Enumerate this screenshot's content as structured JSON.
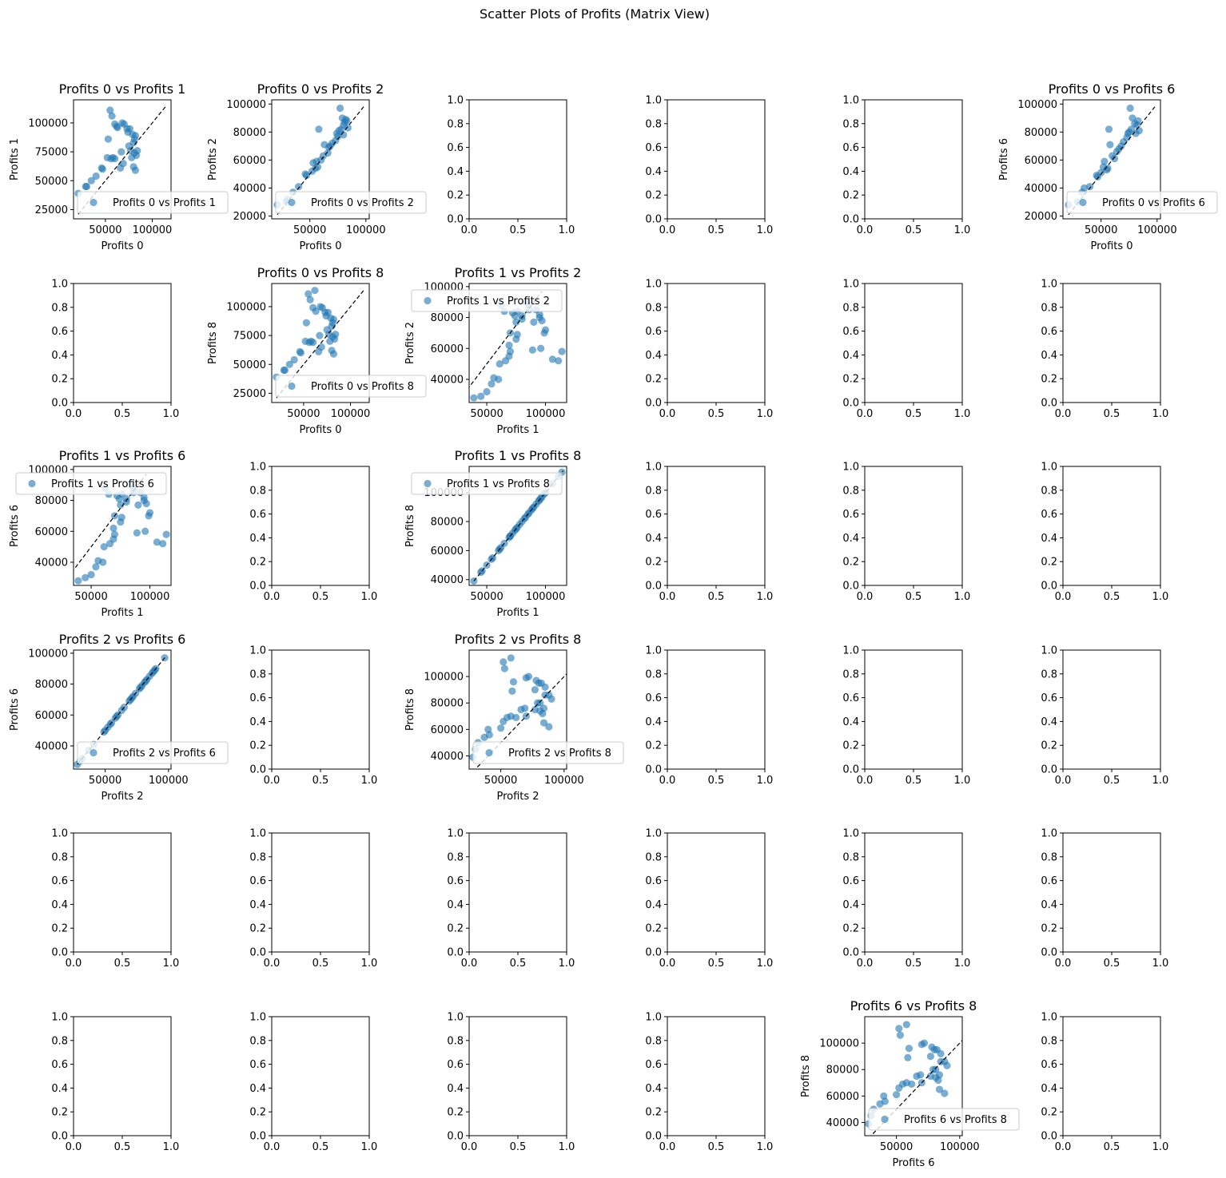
{
  "figure": {
    "title": "Scatter Plots of Profits (Matrix View)",
    "background": "#ffffff"
  },
  "style": {
    "point_color": "#1f77b4",
    "point_alpha": 0.6,
    "identity_line_color": "#000000",
    "axes_color": "#000000"
  },
  "empty_axes": {
    "xlim": [
      0,
      1
    ],
    "ylim": [
      0,
      1
    ],
    "xticks": [
      "0.0",
      "0.5",
      "1.0"
    ],
    "yticks": [
      "0.0",
      "0.2",
      "0.4",
      "0.6",
      "0.8",
      "1.0"
    ]
  },
  "grid": {
    "rows": 6,
    "cols": 6,
    "filled_cells": [
      [
        0,
        0
      ],
      [
        0,
        1
      ],
      [
        0,
        5
      ],
      [
        1,
        1
      ],
      [
        1,
        2
      ],
      [
        2,
        0
      ],
      [
        2,
        2
      ],
      [
        3,
        0
      ],
      [
        3,
        2
      ],
      [
        5,
        4
      ]
    ]
  },
  "chart_data": [
    {
      "type": "scatter",
      "title": "Profits 0 vs Profits 1",
      "xlabel": "Profits 0",
      "ylabel": "Profits 1",
      "legend": "Profits 0 vs Profits 1",
      "legend_loc": "lower-right",
      "xlim": [
        16000,
        120000
      ],
      "ylim": [
        17000,
        120000
      ],
      "xticks": [
        50000,
        100000
      ],
      "xtick_labels": [
        "50000",
        "100000"
      ],
      "yticks": [
        25000,
        50000,
        75000,
        100000
      ],
      "ytick_labels": [
        "25000",
        "50000",
        "75000",
        "100000"
      ],
      "identity": [
        21000,
        115000
      ],
      "x": [
        21000,
        29000,
        30000,
        35000,
        40000,
        46000,
        47000,
        52000,
        53000,
        55000,
        56000,
        57000,
        58000,
        60000,
        60000,
        62000,
        63000,
        66000,
        67000,
        68000,
        69000,
        70000,
        73000,
        74000,
        75000,
        76000,
        77000,
        78000,
        79000,
        80000,
        80000,
        81000,
        81000,
        82000,
        82000,
        83000,
        84000
      ],
      "y": [
        39000,
        45000,
        45000,
        50000,
        54000,
        61000,
        60000,
        70000,
        86000,
        111000,
        69000,
        106000,
        70000,
        99000,
        69000,
        97000,
        96000,
        61000,
        75000,
        100000,
        65000,
        99000,
        95000,
        92000,
        80000,
        95000,
        76000,
        70000,
        90000,
        83000,
        62000,
        86000,
        74000,
        89000,
        59000,
        72000,
        76000
      ]
    },
    {
      "type": "scatter",
      "title": "Profits 0 vs Profits 2",
      "xlabel": "Profits 0",
      "ylabel": "Profits 2",
      "legend": "Profits 0 vs Profits 2",
      "legend_loc": "lower-right",
      "xlim": [
        16000,
        103000
      ],
      "ylim": [
        18000,
        103000
      ],
      "xticks": [
        50000,
        100000
      ],
      "xtick_labels": [
        "50000",
        "100000"
      ],
      "yticks": [
        20000,
        40000,
        60000,
        80000,
        100000
      ],
      "ytick_labels": [
        "20000",
        "40000",
        "60000",
        "80000",
        "100000"
      ],
      "identity": [
        21000,
        98000
      ],
      "x": [
        21000,
        29000,
        30000,
        35000,
        40000,
        46000,
        47000,
        52000,
        53000,
        55000,
        56000,
        57000,
        58000,
        60000,
        62000,
        63000,
        66000,
        67000,
        68000,
        70000,
        73000,
        74000,
        75000,
        76000,
        77000,
        78000,
        79000,
        80000,
        80000,
        81000,
        82000,
        83000,
        84000
      ],
      "y": [
        28000,
        30000,
        32000,
        37000,
        41000,
        50000,
        49000,
        52000,
        58000,
        54000,
        59000,
        55000,
        82000,
        60000,
        63000,
        71000,
        65000,
        69000,
        70000,
        72000,
        74000,
        79000,
        77000,
        81000,
        97000,
        82000,
        90000,
        85000,
        78000,
        87000,
        89000,
        88000,
        83000
      ]
    },
    {
      "type": "scatter",
      "title": "Profits 0 vs Profits 6",
      "xlabel": "Profits 0",
      "ylabel": "Profits 6",
      "legend": "Profits 0 vs Profits 6",
      "legend_loc": "lower-right",
      "xlim": [
        16000,
        103000
      ],
      "ylim": [
        18000,
        103000
      ],
      "xticks": [
        50000,
        100000
      ],
      "xtick_labels": [
        "50000",
        "100000"
      ],
      "yticks": [
        20000,
        40000,
        60000,
        80000,
        100000
      ],
      "ytick_labels": [
        "20000",
        "40000",
        "60000",
        "80000",
        "100000"
      ],
      "identity": [
        21000,
        98000
      ],
      "x": [
        21000,
        29000,
        33000,
        35000,
        40000,
        46000,
        47000,
        50000,
        52000,
        53000,
        55000,
        56000,
        57000,
        58000,
        60000,
        62000,
        64000,
        66000,
        68000,
        70000,
        73000,
        74000,
        75000,
        76000,
        77000,
        78000,
        80000,
        81000,
        82000,
        83000,
        84000
      ],
      "y": [
        28000,
        30000,
        37000,
        40000,
        41000,
        49000,
        48000,
        51000,
        55000,
        59000,
        53000,
        54000,
        82000,
        71000,
        63000,
        61000,
        66000,
        68000,
        70000,
        73000,
        76000,
        79000,
        80000,
        97000,
        82000,
        90000,
        86000,
        79000,
        85000,
        88000,
        81000
      ]
    },
    {
      "type": "scatter",
      "title": "Profits 0 vs Profits 8",
      "xlabel": "Profits 0",
      "ylabel": "Profits 8",
      "legend": "Profits 0 vs Profits 8",
      "legend_loc": "lower-right",
      "xlim": [
        16000,
        120000
      ],
      "ylim": [
        17000,
        120000
      ],
      "xticks": [
        50000,
        100000
      ],
      "xtick_labels": [
        "50000",
        "100000"
      ],
      "yticks": [
        25000,
        50000,
        75000,
        100000
      ],
      "ytick_labels": [
        "25000",
        "50000",
        "75000",
        "100000"
      ],
      "identity": [
        21000,
        115000
      ],
      "x": [
        21000,
        29000,
        30000,
        35000,
        40000,
        46000,
        47000,
        52000,
        53000,
        55000,
        56000,
        57000,
        58000,
        60000,
        60000,
        62000,
        63000,
        66000,
        67000,
        68000,
        69000,
        70000,
        73000,
        74000,
        75000,
        76000,
        77000,
        78000,
        79000,
        80000,
        80000,
        81000,
        81000,
        82000,
        82000,
        83000,
        84000
      ],
      "y": [
        39000,
        45000,
        45000,
        50000,
        54000,
        61000,
        60000,
        70000,
        86000,
        111000,
        69000,
        106000,
        70000,
        99000,
        69000,
        114000,
        96000,
        61000,
        75000,
        100000,
        65000,
        99000,
        95000,
        92000,
        80000,
        95000,
        76000,
        70000,
        90000,
        83000,
        62000,
        86000,
        74000,
        89000,
        59000,
        72000,
        76000
      ]
    },
    {
      "type": "scatter",
      "title": "Profits 1 vs Profits 2",
      "xlabel": "Profits 1",
      "ylabel": "Profits 2",
      "legend": "Profits 1 vs Profits 2",
      "legend_loc": "upper-left",
      "xlim": [
        35000,
        118000
      ],
      "ylim": [
        25000,
        102000
      ],
      "xticks": [
        50000,
        100000
      ],
      "xtick_labels": [
        "50000",
        "100000"
      ],
      "yticks": [
        40000,
        60000,
        80000,
        100000
      ],
      "ytick_labels": [
        "40000",
        "60000",
        "80000",
        "100000"
      ],
      "identity": [
        30000,
        97000
      ],
      "x": [
        39000,
        45000,
        50000,
        54000,
        56000,
        60000,
        61000,
        62000,
        65000,
        66000,
        69000,
        69000,
        70000,
        70000,
        72000,
        74000,
        75000,
        75000,
        76000,
        76000,
        80000,
        80000,
        83000,
        86000,
        86000,
        89000,
        90000,
        92000,
        95000,
        95000,
        96000,
        97000,
        99000,
        100000,
        106000,
        111000,
        114000
      ],
      "y": [
        28000,
        29000,
        32000,
        37000,
        41000,
        40000,
        50000,
        88000,
        84000,
        52000,
        62000,
        55000,
        70000,
        58000,
        83000,
        81000,
        66000,
        77000,
        69000,
        84000,
        81000,
        79000,
        90000,
        85000,
        88000,
        59000,
        77000,
        85000,
        82000,
        80000,
        60000,
        78000,
        70000,
        72000,
        53000,
        52000,
        58000
      ]
    },
    {
      "type": "scatter",
      "title": "Profits 1 vs Profits 6",
      "xlabel": "Profits 1",
      "ylabel": "Profits 6",
      "legend": "Profits 1 vs Profits 6",
      "legend_loc": "upper-left",
      "xlim": [
        35000,
        118000
      ],
      "ylim": [
        25000,
        102000
      ],
      "xticks": [
        50000,
        100000
      ],
      "xtick_labels": [
        "50000",
        "100000"
      ],
      "yticks": [
        40000,
        60000,
        80000,
        100000
      ],
      "ytick_labels": [
        "40000",
        "60000",
        "80000",
        "100000"
      ],
      "identity": [
        30000,
        97000
      ],
      "x": [
        39000,
        45000,
        50000,
        54000,
        56000,
        60000,
        61000,
        62000,
        65000,
        66000,
        69000,
        69000,
        70000,
        70000,
        72000,
        74000,
        75000,
        75000,
        76000,
        76000,
        80000,
        80000,
        83000,
        86000,
        86000,
        89000,
        90000,
        92000,
        95000,
        95000,
        96000,
        97000,
        99000,
        100000,
        106000,
        111000,
        114000
      ],
      "y": [
        28000,
        30000,
        32000,
        37000,
        41000,
        40000,
        50000,
        88000,
        84000,
        52000,
        62000,
        55000,
        70000,
        58000,
        83000,
        81000,
        66000,
        77000,
        69000,
        84000,
        81000,
        79000,
        90000,
        85000,
        88000,
        59000,
        77000,
        85000,
        82000,
        80000,
        60000,
        78000,
        70000,
        72000,
        53000,
        52000,
        58000
      ]
    },
    {
      "type": "scatter",
      "title": "Profits 1 vs Profits 8",
      "xlabel": "Profits 1",
      "ylabel": "Profits 8",
      "legend": "Profits 1 vs Profits 8",
      "legend_loc": "upper-left",
      "xlim": [
        35000,
        118000
      ],
      "ylim": [
        36000,
        118000
      ],
      "xticks": [
        50000,
        100000
      ],
      "xtick_labels": [
        "50000",
        "100000"
      ],
      "yticks": [
        40000,
        60000,
        80000,
        100000
      ],
      "ytick_labels": [
        "40000",
        "60000",
        "80000",
        "100000"
      ],
      "identity": [
        39000,
        115000
      ],
      "x": [
        39000,
        45000,
        46000,
        50000,
        54000,
        55000,
        60000,
        61000,
        62000,
        65000,
        69000,
        70000,
        70000,
        72000,
        74000,
        75000,
        76000,
        78000,
        80000,
        82000,
        83000,
        85000,
        86000,
        88000,
        89000,
        90000,
        92000,
        94000,
        95000,
        96000,
        97000,
        99000,
        100000,
        106000,
        111000,
        114000
      ],
      "y": [
        39000,
        45000,
        46000,
        50000,
        54000,
        55000,
        60000,
        61000,
        62000,
        65000,
        69000,
        70000,
        70000,
        72000,
        74000,
        75000,
        76000,
        78000,
        80000,
        82000,
        83000,
        85000,
        86000,
        88000,
        89000,
        90000,
        92000,
        94000,
        95000,
        96000,
        97000,
        99000,
        100000,
        106000,
        111000,
        114000
      ]
    },
    {
      "type": "scatter",
      "title": "Profits 2 vs Profits 6",
      "xlabel": "Profits 2",
      "ylabel": "Profits 6",
      "legend": "Profits 2 vs Profits 6",
      "legend_loc": "lower-right",
      "xlim": [
        25000,
        102000
      ],
      "ylim": [
        25000,
        102000
      ],
      "xticks": [
        50000,
        100000
      ],
      "xtick_labels": [
        "50000",
        "100000"
      ],
      "yticks": [
        40000,
        60000,
        80000,
        100000
      ],
      "ytick_labels": [
        "40000",
        "60000",
        "80000",
        "100000"
      ],
      "identity": [
        28000,
        98000
      ],
      "x": [
        28000,
        30000,
        32000,
        37000,
        41000,
        49000,
        50000,
        52000,
        54000,
        55000,
        58000,
        59000,
        60000,
        63000,
        65000,
        69000,
        70000,
        71000,
        72000,
        74000,
        77000,
        78000,
        79000,
        81000,
        82000,
        83000,
        85000,
        87000,
        88000,
        89000,
        90000,
        97000
      ],
      "y": [
        28000,
        30000,
        32000,
        37000,
        41000,
        49000,
        50000,
        52000,
        54000,
        55000,
        58000,
        59000,
        60000,
        63000,
        65000,
        69000,
        70000,
        71000,
        72000,
        74000,
        77000,
        78000,
        79000,
        81000,
        82000,
        83000,
        85000,
        87000,
        88000,
        89000,
        90000,
        97000
      ]
    },
    {
      "type": "scatter",
      "title": "Profits 2 vs Profits 8",
      "xlabel": "Profits 2",
      "ylabel": "Profits 8",
      "legend": "Profits 2 vs Profits 8",
      "legend_loc": "lower-right",
      "xlim": [
        25000,
        102000
      ],
      "ylim": [
        30000,
        120000
      ],
      "xticks": [
        50000,
        100000
      ],
      "xtick_labels": [
        "50000",
        "100000"
      ],
      "yticks": [
        40000,
        60000,
        80000,
        100000
      ],
      "ytick_labels": [
        "40000",
        "60000",
        "80000",
        "100000"
      ],
      "identity": [
        28000,
        115000
      ],
      "x": [
        28000,
        30000,
        32000,
        37000,
        41000,
        40000,
        50000,
        88000,
        84000,
        52000,
        62000,
        55000,
        70000,
        58000,
        83000,
        81000,
        66000,
        77000,
        69000,
        84000,
        81000,
        79000,
        90000,
        85000,
        88000,
        59000,
        77000,
        85000,
        82000,
        80000,
        60000,
        78000,
        70000,
        72000,
        53000,
        52000,
        58000
      ],
      "y": [
        39000,
        45000,
        50000,
        54000,
        56000,
        60000,
        61000,
        62000,
        65000,
        66000,
        69000,
        69000,
        70000,
        70000,
        72000,
        74000,
        75000,
        75000,
        76000,
        76000,
        80000,
        80000,
        83000,
        86000,
        86000,
        89000,
        90000,
        92000,
        95000,
        95000,
        96000,
        97000,
        99000,
        100000,
        106000,
        111000,
        114000
      ]
    },
    {
      "type": "scatter",
      "title": "Profits 6 vs Profits 8",
      "xlabel": "Profits 6",
      "ylabel": "Profits 8",
      "legend": "Profits 6 vs Profits 8",
      "legend_loc": "lower-right",
      "xlim": [
        25000,
        102000
      ],
      "ylim": [
        30000,
        120000
      ],
      "xticks": [
        50000,
        100000
      ],
      "xtick_labels": [
        "50000",
        "100000"
      ],
      "yticks": [
        40000,
        60000,
        80000,
        100000
      ],
      "ytick_labels": [
        "40000",
        "60000",
        "80000",
        "100000"
      ],
      "identity": [
        28000,
        115000
      ],
      "x": [
        28000,
        30000,
        32000,
        37000,
        41000,
        40000,
        50000,
        88000,
        84000,
        52000,
        62000,
        55000,
        70000,
        58000,
        83000,
        81000,
        66000,
        77000,
        69000,
        84000,
        81000,
        79000,
        90000,
        85000,
        88000,
        59000,
        77000,
        85000,
        82000,
        80000,
        60000,
        78000,
        70000,
        72000,
        53000,
        52000,
        58000
      ],
      "y": [
        39000,
        45000,
        50000,
        54000,
        56000,
        60000,
        61000,
        62000,
        65000,
        66000,
        69000,
        69000,
        70000,
        70000,
        72000,
        74000,
        75000,
        75000,
        76000,
        76000,
        80000,
        80000,
        83000,
        86000,
        86000,
        89000,
        90000,
        92000,
        95000,
        95000,
        96000,
        97000,
        99000,
        100000,
        106000,
        111000,
        114000
      ]
    }
  ]
}
